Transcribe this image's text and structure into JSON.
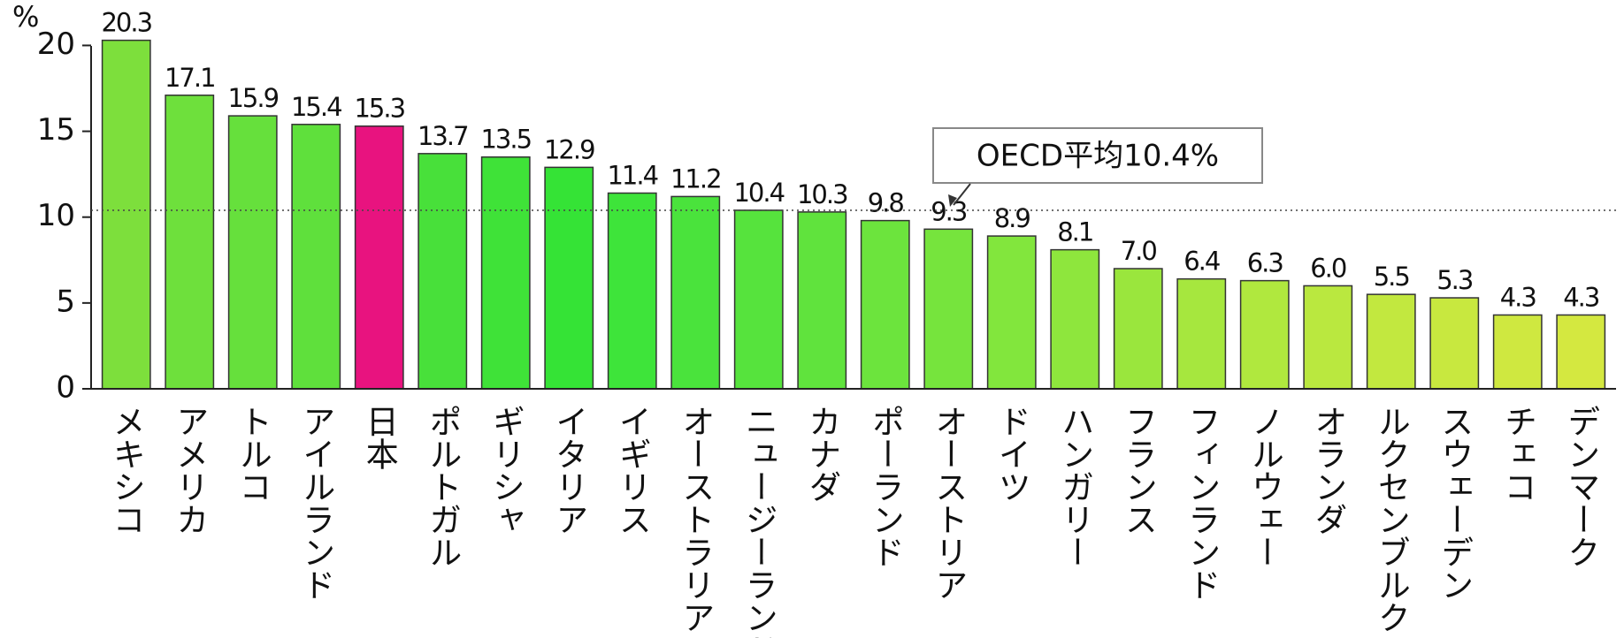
{
  "chart_data": {
    "type": "bar",
    "ylabel": "%",
    "categories": [
      "メキシコ",
      "アメリカ",
      "トルコ",
      "アイルランド",
      "日本",
      "ポルトガル",
      "ギリシャ",
      "イタリア",
      "イギリス",
      "オーストラリア",
      "ニュージーランド",
      "カナダ",
      "ポーランド",
      "オーストリア",
      "ドイツ",
      "ハンガリー",
      "フランス",
      "フィンランド",
      "ノルウェー",
      "オランダ",
      "ルクセンブルク",
      "スウェーデン",
      "チェコ",
      "デンマーク"
    ],
    "values": [
      20.3,
      17.1,
      15.9,
      15.4,
      15.3,
      13.7,
      13.5,
      12.9,
      11.4,
      11.2,
      10.4,
      10.3,
      9.8,
      9.3,
      8.9,
      8.1,
      7.0,
      6.4,
      6.3,
      6.0,
      5.5,
      5.3,
      4.3,
      4.3
    ],
    "value_labels": [
      "20.3",
      "17.1",
      "15.9",
      "15.4",
      "15.3",
      "13.7",
      "13.5",
      "12.9",
      "11.4",
      "11.2",
      "10.4",
      "10.3",
      "9.8",
      "9.3",
      "8.9",
      "8.1",
      "7.0",
      "6.4",
      "6.3",
      "6.0",
      "5.5",
      "5.3",
      "4.3",
      "4.3"
    ],
    "colors": [
      "#7ddf3c",
      "#6ee03c",
      "#66e03c",
      "#5fe03c",
      "#e8137f",
      "#48e03a",
      "#3fe238",
      "#35e336",
      "#3ee43a",
      "#4ae33c",
      "#56e33d",
      "#60e33d",
      "#6ce43d",
      "#76e43d",
      "#82e63d",
      "#8ee63d",
      "#9ae63d",
      "#a6e73e",
      "#b0e83e",
      "#bae83f",
      "#c2e83f",
      "#c8e83f",
      "#cfe840",
      "#d4e840"
    ],
    "ylim": [
      0,
      21
    ],
    "yticks": [
      0,
      5,
      10,
      15,
      20
    ],
    "reference_line": {
      "value": 10.4,
      "label": "OECD平均10.4%"
    }
  }
}
